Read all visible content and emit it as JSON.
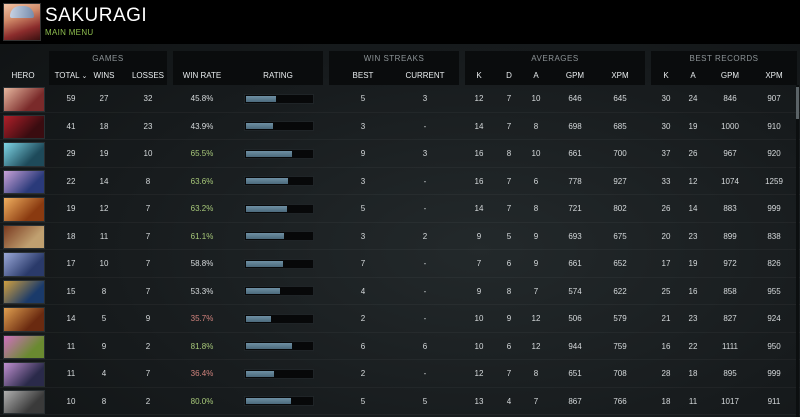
{
  "header": {
    "title": "SAKURAGI",
    "submenu": "MAIN MENU",
    "avatar_icon": "hero-portrait-icon"
  },
  "groups": {
    "games": "GAMES",
    "win_streaks": "WIN STREAKS",
    "averages": "AVERAGES",
    "best_records": "BEST RECORDS"
  },
  "columns": {
    "hero": "HERO",
    "total": "TOTAL",
    "wins": "WINS",
    "losses": "LOSSES",
    "win_rate": "WIN RATE",
    "rating": "RATING",
    "streak_best": "BEST",
    "streak_current": "CURRENT",
    "k": "K",
    "d": "D",
    "a": "A",
    "gpm": "GPM",
    "xpm": "XPM",
    "best_k": "K",
    "best_a": "A",
    "best_gpm": "GPM",
    "best_xpm": "XPM"
  },
  "colors": {
    "win_rate_good": "#a8c97a",
    "win_rate_bad": "#d2847e",
    "rating_bar": "#5f7f92"
  },
  "rows": [
    {
      "hero_colors": [
        "#7a2a2a",
        "#e7b8a0"
      ],
      "total": "59",
      "wins": "27",
      "losses": "32",
      "win_rate": "45.8%",
      "wr_class": "plain",
      "rating": 0.45,
      "best": "5",
      "current": "3",
      "k": "12",
      "d": "7",
      "a": "10",
      "gpm": "646",
      "xpm": "645",
      "bk": "30",
      "ba": "24",
      "bgpm": "846",
      "bxpm": "907"
    },
    {
      "hero_colors": [
        "#3a0c10",
        "#b0202a"
      ],
      "total": "41",
      "wins": "18",
      "losses": "23",
      "win_rate": "43.9%",
      "wr_class": "plain",
      "rating": 0.41,
      "best": "3",
      "current": "-",
      "k": "14",
      "d": "7",
      "a": "8",
      "gpm": "698",
      "xpm": "685",
      "bk": "30",
      "ba": "19",
      "bgpm": "1000",
      "bxpm": "910"
    },
    {
      "hero_colors": [
        "#1e4a5a",
        "#7fd6e6"
      ],
      "total": "29",
      "wins": "19",
      "losses": "10",
      "win_rate": "65.5%",
      "wr_class": "green",
      "rating": 0.7,
      "best": "9",
      "current": "3",
      "k": "16",
      "d": "8",
      "a": "10",
      "gpm": "661",
      "xpm": "700",
      "bk": "37",
      "ba": "26",
      "bgpm": "967",
      "bxpm": "920"
    },
    {
      "hero_colors": [
        "#2a3a7a",
        "#c9a2d8"
      ],
      "total": "22",
      "wins": "14",
      "losses": "8",
      "win_rate": "63.6%",
      "wr_class": "green",
      "rating": 0.63,
      "best": "3",
      "current": "-",
      "k": "16",
      "d": "7",
      "a": "6",
      "gpm": "778",
      "xpm": "927",
      "bk": "33",
      "ba": "12",
      "bgpm": "1074",
      "bxpm": "1259"
    },
    {
      "hero_colors": [
        "#8a3a10",
        "#f0b060"
      ],
      "total": "19",
      "wins": "12",
      "losses": "7",
      "win_rate": "63.2%",
      "wr_class": "green",
      "rating": 0.62,
      "best": "5",
      "current": "-",
      "k": "14",
      "d": "7",
      "a": "8",
      "gpm": "721",
      "xpm": "802",
      "bk": "26",
      "ba": "14",
      "bgpm": "883",
      "bxpm": "999"
    },
    {
      "hero_colors": [
        "#c0a070",
        "#7a3a20"
      ],
      "total": "18",
      "wins": "11",
      "losses": "7",
      "win_rate": "61.1%",
      "wr_class": "green",
      "rating": 0.58,
      "best": "3",
      "current": "2",
      "k": "9",
      "d": "5",
      "a": "9",
      "gpm": "693",
      "xpm": "675",
      "bk": "20",
      "ba": "23",
      "bgpm": "899",
      "bxpm": "838"
    },
    {
      "hero_colors": [
        "#2a3a6a",
        "#9aa8d8"
      ],
      "total": "17",
      "wins": "10",
      "losses": "7",
      "win_rate": "58.8%",
      "wr_class": "plain",
      "rating": 0.56,
      "best": "7",
      "current": "-",
      "k": "7",
      "d": "6",
      "a": "9",
      "gpm": "661",
      "xpm": "652",
      "bk": "17",
      "ba": "19",
      "bgpm": "972",
      "bxpm": "826"
    },
    {
      "hero_colors": [
        "#1a3a6a",
        "#d0a040"
      ],
      "total": "15",
      "wins": "8",
      "losses": "7",
      "win_rate": "53.3%",
      "wr_class": "plain",
      "rating": 0.52,
      "best": "4",
      "current": "-",
      "k": "9",
      "d": "8",
      "a": "7",
      "gpm": "574",
      "xpm": "622",
      "bk": "25",
      "ba": "16",
      "bgpm": "858",
      "bxpm": "955"
    },
    {
      "hero_colors": [
        "#6a2a10",
        "#e0a050"
      ],
      "total": "14",
      "wins": "5",
      "losses": "9",
      "win_rate": "35.7%",
      "wr_class": "red",
      "rating": 0.38,
      "best": "2",
      "current": "-",
      "k": "10",
      "d": "9",
      "a": "12",
      "gpm": "506",
      "xpm": "579",
      "bk": "21",
      "ba": "23",
      "bgpm": "827",
      "bxpm": "924"
    },
    {
      "hero_colors": [
        "#6a8a30",
        "#d070c0"
      ],
      "total": "11",
      "wins": "9",
      "losses": "2",
      "win_rate": "81.8%",
      "wr_class": "green",
      "rating": 0.7,
      "best": "6",
      "current": "6",
      "k": "10",
      "d": "6",
      "a": "12",
      "gpm": "944",
      "xpm": "759",
      "bk": "16",
      "ba": "22",
      "bgpm": "1111",
      "bxpm": "950"
    },
    {
      "hero_colors": [
        "#2a2a4a",
        "#c090d0"
      ],
      "total": "11",
      "wins": "4",
      "losses": "7",
      "win_rate": "36.4%",
      "wr_class": "red",
      "rating": 0.42,
      "best": "2",
      "current": "-",
      "k": "12",
      "d": "7",
      "a": "8",
      "gpm": "651",
      "xpm": "708",
      "bk": "28",
      "ba": "18",
      "bgpm": "895",
      "bxpm": "999"
    },
    {
      "hero_colors": [
        "#3a3a3a",
        "#b0b0b0"
      ],
      "total": "10",
      "wins": "8",
      "losses": "2",
      "win_rate": "80.0%",
      "wr_class": "green",
      "rating": 0.68,
      "best": "5",
      "current": "5",
      "k": "13",
      "d": "4",
      "a": "7",
      "gpm": "867",
      "xpm": "766",
      "bk": "18",
      "ba": "11",
      "bgpm": "1017",
      "bxpm": "911"
    }
  ]
}
